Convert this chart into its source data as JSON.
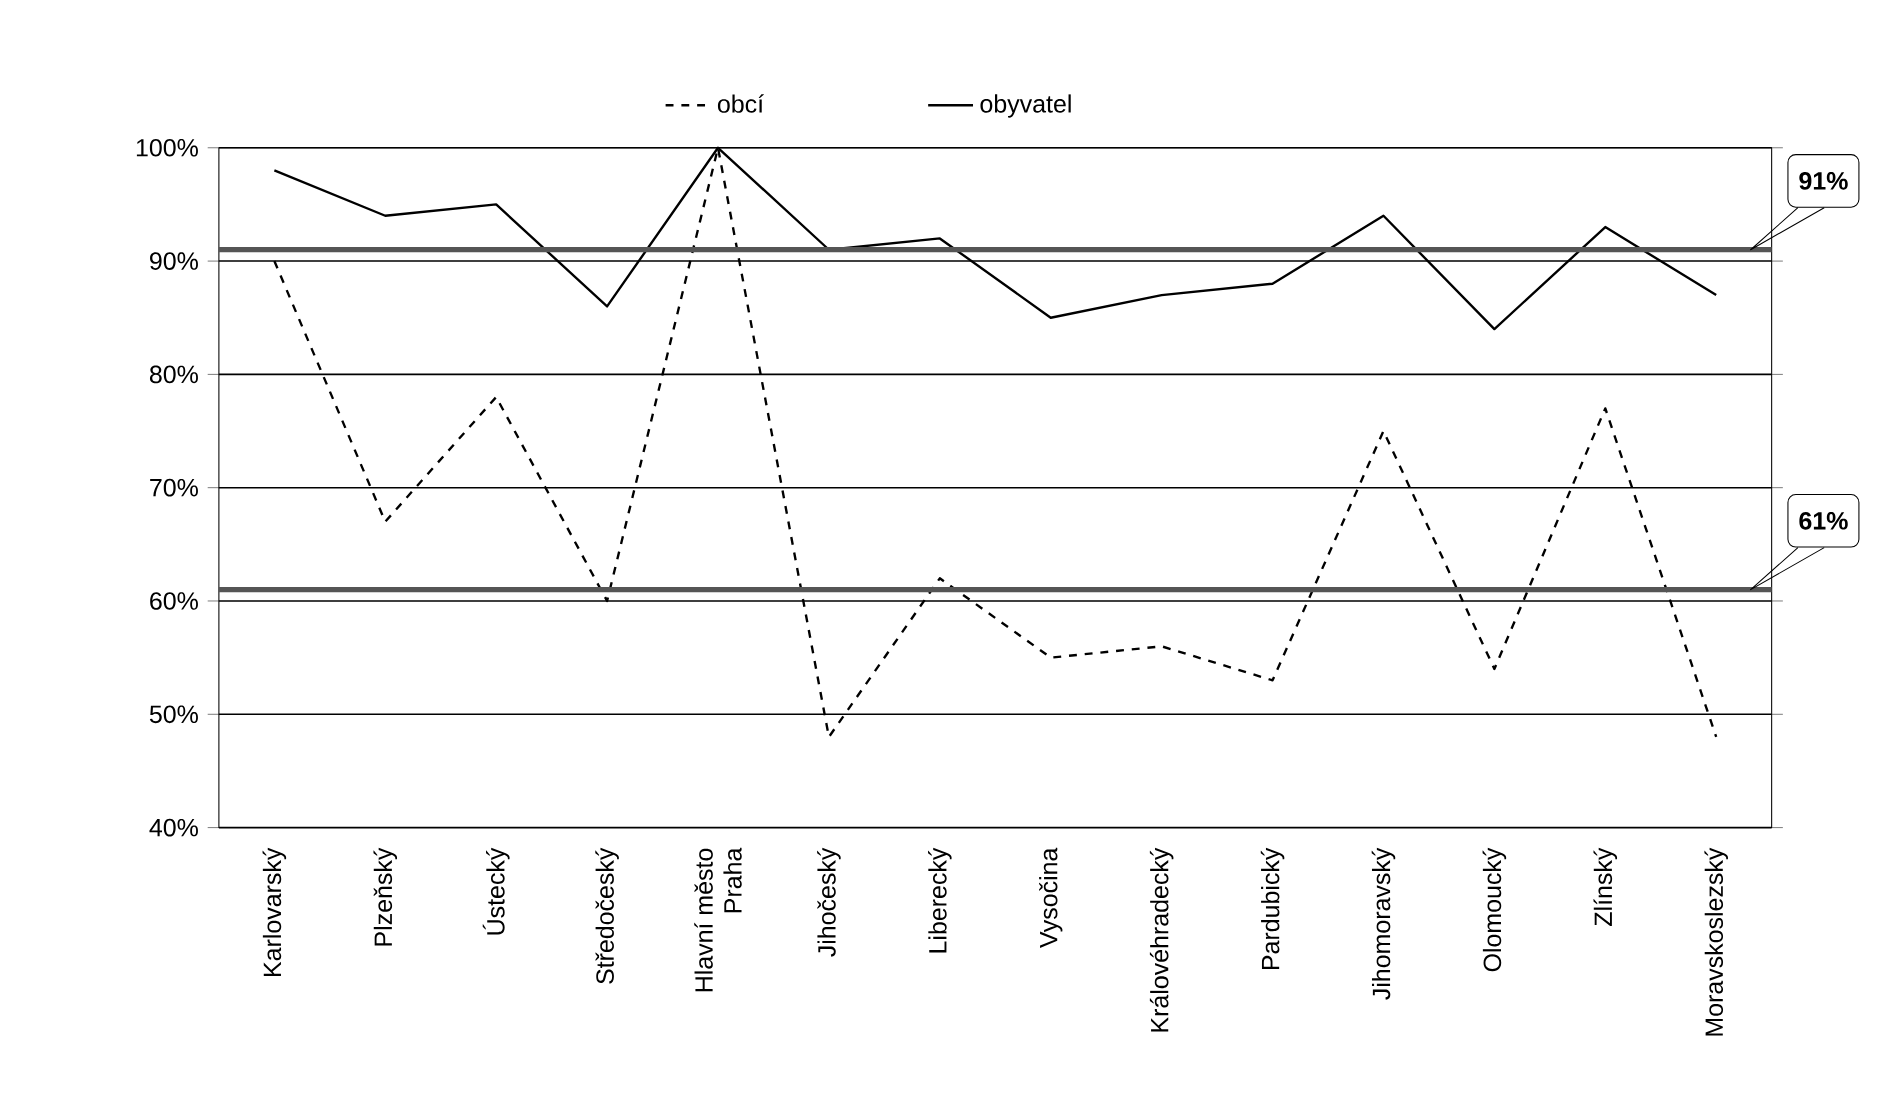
{
  "chart_data": {
    "type": "line",
    "categories": [
      "Karlovarský",
      "Plzeňský",
      "Ústecký",
      "Středočeský",
      "Hlavní město Praha",
      "Jihočeský",
      "Liberecký",
      "Vysočina",
      "Královéhradecký",
      "Pardubický",
      "Jihomoravský",
      "Olomoucký",
      "Zlínský",
      "Moravskoslezský"
    ],
    "series": [
      {
        "name": "obcí",
        "color": "#000000",
        "line_style": "dashed",
        "values": [
          90,
          67,
          78,
          60,
          100,
          48,
          62,
          55,
          56,
          53,
          75,
          54,
          77,
          48
        ]
      },
      {
        "name": "obyvatel",
        "color": "#000000",
        "line_style": "solid",
        "values": [
          98,
          94,
          95,
          86,
          100,
          91,
          92,
          85,
          87,
          88,
          94,
          84,
          93,
          87
        ]
      }
    ],
    "ylim": [
      40,
      100
    ],
    "yticks": [
      {
        "value": 40,
        "label": "40%"
      },
      {
        "value": 50,
        "label": "50%"
      },
      {
        "value": 60,
        "label": "60%"
      },
      {
        "value": 70,
        "label": "70%"
      },
      {
        "value": 80,
        "label": "80%"
      },
      {
        "value": 90,
        "label": "90%"
      },
      {
        "value": 100,
        "label": "100%"
      }
    ],
    "ref_lines": [
      {
        "axis": "y",
        "value": 91,
        "label": "91%",
        "color": "#555555"
      },
      {
        "axis": "y",
        "value": 61,
        "label": "61%",
        "color": "#555555"
      }
    ],
    "grid": "y",
    "legend": "top",
    "marker": "none"
  }
}
